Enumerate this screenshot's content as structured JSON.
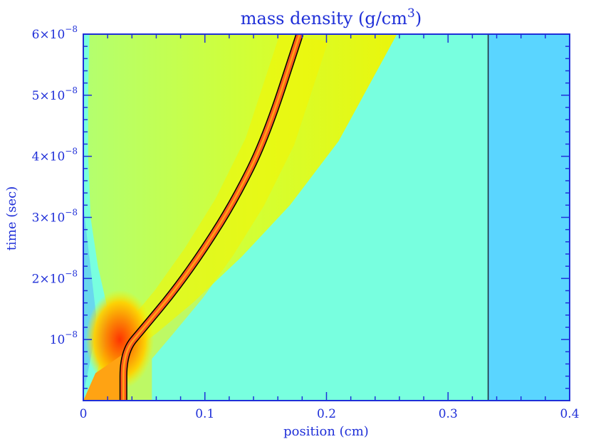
{
  "chart_data": {
    "type": "heatmap",
    "title": "mass density (g/cm",
    "title_sup": "3",
    "title_close": ")",
    "xlabel": "position (cm)",
    "ylabel": "time (sec)",
    "xlim": [
      0,
      0.4
    ],
    "ylim": [
      0,
      6e-08
    ],
    "x_ticks": [
      {
        "value": 0,
        "label": "0"
      },
      {
        "value": 0.1,
        "label": "0.1"
      },
      {
        "value": 0.2,
        "label": "0.2"
      },
      {
        "value": 0.3,
        "label": "0.3"
      },
      {
        "value": 0.4,
        "label": "0.4"
      }
    ],
    "y_ticks": [
      {
        "value": 1e-08,
        "coef": "10",
        "exp": "−8"
      },
      {
        "value": 2e-08,
        "coef": "2×10",
        "exp": "−8"
      },
      {
        "value": 3e-08,
        "coef": "3×10",
        "exp": "−8"
      },
      {
        "value": 4e-08,
        "coef": "4×10",
        "exp": "−8"
      },
      {
        "value": 5e-08,
        "coef": "5×10",
        "exp": "−8"
      },
      {
        "value": 6e-08,
        "coef": "6×10",
        "exp": "−8"
      }
    ],
    "grid": false,
    "regions": {
      "background_color": "#78ffdf",
      "right_slab": {
        "x_start": 0.333,
        "x_end": 0.4,
        "color": "#5ad5ff"
      },
      "initial_slab": {
        "x_start": 0.0,
        "x_end": 0.032,
        "color": "#ffa313"
      },
      "cavity_left": {
        "color": "#62c6f4"
      }
    },
    "shell_trajectory": {
      "color": "#ff5a1a",
      "points": [
        {
          "x": 0.033,
          "t": 0
        },
        {
          "x": 0.033,
          "t": 8e-09
        },
        {
          "x": 0.05,
          "t": 1.2e-08
        },
        {
          "x": 0.075,
          "t": 1.8e-08
        },
        {
          "x": 0.1,
          "t": 2.5e-08
        },
        {
          "x": 0.125,
          "t": 3.3e-08
        },
        {
          "x": 0.15,
          "t": 4.3e-08
        },
        {
          "x": 0.178,
          "t": 6e-08
        }
      ]
    },
    "shock_front": {
      "color": "#d8f500",
      "points": [
        {
          "x": 0.04,
          "t": 8e-09
        },
        {
          "x": 0.06,
          "t": 1.1e-08
        },
        {
          "x": 0.09,
          "t": 1.6e-08
        },
        {
          "x": 0.13,
          "t": 2.35e-08
        },
        {
          "x": 0.17,
          "t": 3.2e-08
        },
        {
          "x": 0.21,
          "t": 4.25e-08
        },
        {
          "x": 0.258,
          "t": 6e-08
        }
      ]
    },
    "inner_boundary": {
      "points": [
        {
          "x": 0.0,
          "t": 0
        },
        {
          "x": 0.01,
          "t": 4e-09
        },
        {
          "x": 0.018,
          "t": 9e-09
        },
        {
          "x": 0.02,
          "t": 1.5e-08
        },
        {
          "x": 0.012,
          "t": 2.2e-08
        },
        {
          "x": 0.006,
          "t": 3e-08
        },
        {
          "x": 0.004,
          "t": 4e-08
        },
        {
          "x": 0.004,
          "t": 5e-08
        },
        {
          "x": 0.005,
          "t": 6e-08
        }
      ]
    },
    "colors": {
      "frame": "#1f2fd8",
      "contour": "#000000",
      "yellow_green": "#c8f000",
      "yellow": "#f6f400",
      "green": "#a8ff60",
      "red": "#ff2a00"
    }
  }
}
